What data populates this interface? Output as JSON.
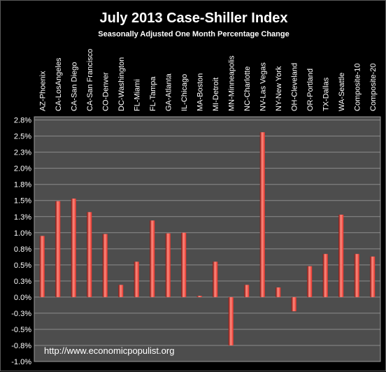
{
  "chart_data": {
    "type": "bar",
    "title": "July 2013 Case-Shiller Index",
    "subtitle": "Seasonally Adjusted One Month Percentage Change",
    "categories": [
      "AZ-Phoenix",
      "CA-LosAngeles",
      "CA-San Diego",
      "CA-San Francisco",
      "CO-Denver",
      "DC-Washington",
      "FL-Miami",
      "FL-Tampa",
      "GA-Atlanta",
      "IL-Chicago",
      "MA-Boston",
      "MI-Detroit",
      "MN-Minneapolis",
      "NC-Charlotte",
      "NV-Las Vegas",
      "NY-New York",
      "OH-Cleveland",
      "OR-Portland",
      "TX-Dallas",
      "WA-Seattle",
      "Composite-10",
      "Composite-20"
    ],
    "values": [
      0.95,
      1.49,
      1.53,
      1.32,
      0.98,
      0.19,
      0.55,
      1.19,
      0.99,
      1.0,
      0.02,
      0.55,
      -0.75,
      0.19,
      2.56,
      0.15,
      -0.22,
      0.48,
      0.67,
      1.28,
      0.67,
      0.63
    ],
    "ylim": [
      -1.0,
      2.8
    ],
    "yticks": [
      -1.0,
      -0.75,
      -0.5,
      -0.25,
      0.0,
      0.25,
      0.5,
      0.75,
      1.0,
      1.25,
      1.5,
      1.75,
      2.0,
      2.25,
      2.5,
      2.75
    ],
    "ytick_labels": [
      "-1.0%",
      "-0.8%",
      "-0.5%",
      "-0.3%",
      "0.0%",
      "0.3%",
      "0.5%",
      "0.8%",
      "1.0%",
      "1.3%",
      "1.5%",
      "1.8%",
      "2.0%",
      "2.3%",
      "2.5%",
      "2.8%"
    ],
    "grid": true,
    "bar_color": "#e8332a",
    "bar_highlight": "#ff8c80",
    "bar_shadow": "#8a0f0a",
    "background": "#000000",
    "plot_background": "#4d4d4d",
    "grid_color": "#8c8c8c"
  },
  "watermark": "http://www.economicpopulist.org"
}
